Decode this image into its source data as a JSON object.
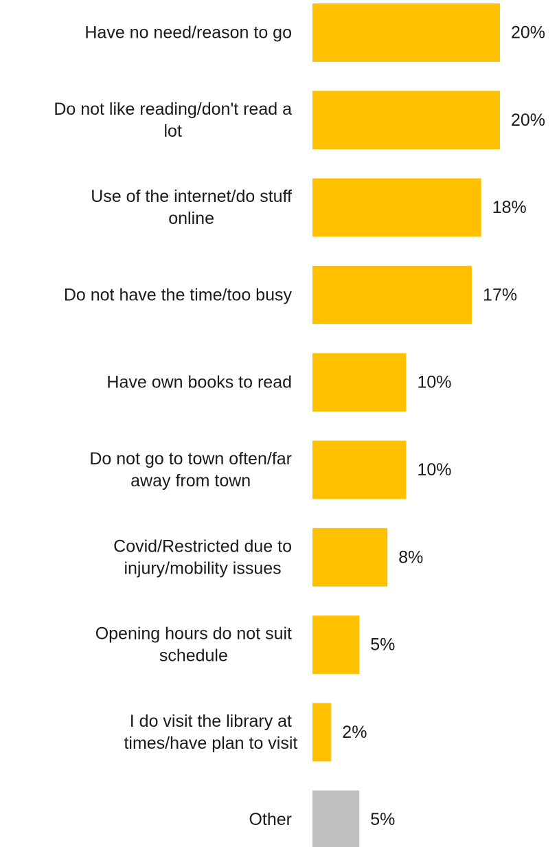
{
  "chart_data": {
    "type": "bar",
    "orientation": "horizontal",
    "categories": [
      [
        "Have no need/reason to go"
      ],
      [
        "Do not like reading/don't read a",
        "lot"
      ],
      [
        "Use of the internet/do stuff",
        "online"
      ],
      [
        "Do not have the time/too busy"
      ],
      [
        "Have own books to read"
      ],
      [
        "Do not go to town often/far",
        "away from town"
      ],
      [
        "Covid/Restricted due to",
        "injury/mobility issues"
      ],
      [
        "Opening hours do not suit",
        "schedule"
      ],
      [
        "I do visit the library at",
        "times/have plan to visit"
      ],
      [
        "Other"
      ]
    ],
    "values": [
      20,
      20,
      18,
      17,
      10,
      10,
      8,
      5,
      2,
      5
    ],
    "value_labels": [
      "20%",
      "20%",
      "18%",
      "17%",
      "10%",
      "10%",
      "8%",
      "5%",
      "2%",
      "5%"
    ],
    "bar_colors": [
      "#FFC000",
      "#FFC000",
      "#FFC000",
      "#FFC000",
      "#FFC000",
      "#FFC000",
      "#FFC000",
      "#FFC000",
      "#FFC000",
      "#BFBFBF"
    ],
    "xlim": [
      0,
      20
    ],
    "title": "",
    "xlabel": "",
    "ylabel": "",
    "grid": false,
    "legend": "none"
  }
}
